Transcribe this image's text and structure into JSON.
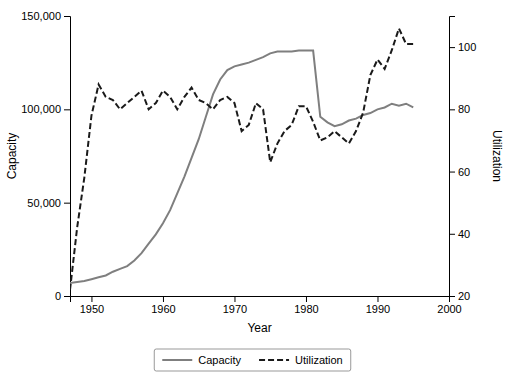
{
  "chart_data": {
    "type": "line",
    "x_label": "Year",
    "y_label": "Capacity",
    "y2_label": "Utilization",
    "x": [
      1947,
      1948,
      1949,
      1950,
      1951,
      1952,
      1953,
      1954,
      1955,
      1956,
      1957,
      1958,
      1959,
      1960,
      1961,
      1962,
      1963,
      1964,
      1965,
      1966,
      1967,
      1968,
      1969,
      1970,
      1971,
      1972,
      1973,
      1974,
      1975,
      1976,
      1977,
      1978,
      1979,
      1980,
      1981,
      1982,
      1983,
      1984,
      1985,
      1986,
      1987,
      1988,
      1989,
      1990,
      1991,
      1992,
      1993,
      1994,
      1995
    ],
    "series": [
      {
        "name": "Capacity",
        "color": "#7f7f7f",
        "line_style": "solid",
        "values": [
          7000,
          7500,
          8000,
          9000,
          10000,
          11000,
          13000,
          14500,
          16000,
          19000,
          23000,
          28000,
          33000,
          39000,
          46000,
          55000,
          64000,
          74000,
          84000,
          96000,
          108000,
          116000,
          121000,
          123000,
          124000,
          125000,
          126500,
          128000,
          130000,
          131000,
          131000,
          131000,
          131500,
          131500,
          131500,
          96000,
          93000,
          91000,
          92000,
          94000,
          95000,
          97000,
          98000,
          100000,
          101000,
          103000,
          102000,
          103000,
          101000
        ]
      },
      {
        "name": "Utilization",
        "color": "#1a1a1a",
        "line_style": "dashed",
        "axis": "y2",
        "values": [
          22,
          42,
          58,
          78,
          88,
          84,
          83,
          80,
          82,
          84,
          86,
          80,
          82,
          86,
          84,
          80,
          84,
          87,
          83,
          82,
          80,
          83,
          84,
          82,
          73,
          75,
          82,
          80,
          63,
          69,
          73,
          75,
          81,
          81,
          76,
          70,
          71,
          73,
          71,
          69,
          73,
          79,
          91,
          96,
          93,
          99,
          106,
          101,
          101
        ]
      }
    ],
    "xlim": [
      1947,
      2000
    ],
    "xticks": [
      1950,
      1960,
      1970,
      1980,
      1990,
      2000
    ],
    "ylim": [
      0,
      150000
    ],
    "yticks": [
      0,
      {
        "value": 50000,
        "label": "50,000"
      },
      {
        "value": 100000,
        "label": "100,000"
      },
      {
        "value": 150000,
        "label": "150,000"
      }
    ],
    "y2lim": [
      20,
      110
    ],
    "y2ticks": [
      20,
      40,
      60,
      80,
      100
    ],
    "grid": false,
    "legend": "bottom"
  }
}
